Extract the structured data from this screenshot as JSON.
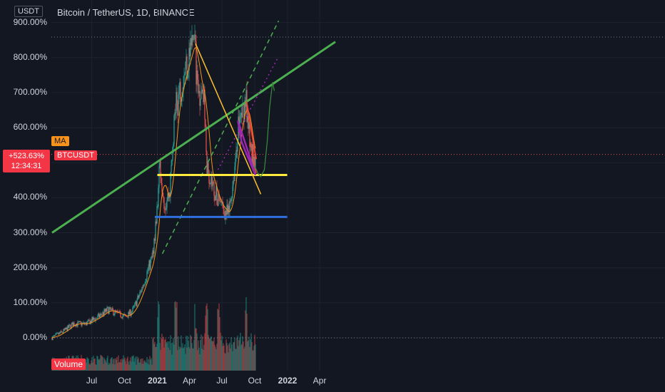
{
  "header": {
    "unit": "USDT",
    "title": "Bitcoin / TetherUS, 1D, BINANCE"
  },
  "indicators": {
    "ma_label": "MA",
    "symbol": "BTCUSDT",
    "current_change": "+523.63%",
    "countdown": "12:34:31",
    "volume_label": "Volume"
  },
  "colors": {
    "background": "#131722",
    "up": "#26a69a",
    "down": "#ef5350",
    "ma_line": "#f7931a",
    "trend_green": "#4caf50",
    "support_yellow": "#ffeb3b",
    "support_blue": "#2962ff",
    "wedge_yellow": "#fbc02d",
    "wedge_red": "#f44336",
    "purple": "#9c27b0"
  },
  "chart_data": {
    "type": "candlestick",
    "scale": "percent",
    "y_ticks": [
      "900.00%",
      "800.00%",
      "700.00%",
      "600.00%",
      "500.00%",
      "400.00%",
      "300.00%",
      "200.00%",
      "100.00%",
      "0.00%"
    ],
    "x_ticks": [
      "Jul",
      "Oct",
      "2021",
      "Apr",
      "Jul",
      "Oct",
      "2022",
      "Apr"
    ],
    "x_ticks_bold": [
      "2021",
      "2022"
    ],
    "ylim": [
      -100,
      950
    ],
    "price_path": [
      [
        "2020-03-12",
        0
      ],
      [
        "2020-04-15",
        20
      ],
      [
        "2020-05-10",
        40
      ],
      [
        "2020-06-15",
        40
      ],
      [
        "2020-07-20",
        60
      ],
      [
        "2020-08-15",
        80
      ],
      [
        "2020-09-10",
        70
      ],
      [
        "2020-10-05",
        60
      ],
      [
        "2020-10-25",
        80
      ],
      [
        "2020-11-15",
        130
      ],
      [
        "2020-12-01",
        180
      ],
      [
        "2020-12-18",
        230
      ],
      [
        "2021-01-02",
        380
      ],
      [
        "2021-01-08",
        500
      ],
      [
        "2021-01-22",
        380
      ],
      [
        "2021-02-05",
        420
      ],
      [
        "2021-02-20",
        650
      ],
      [
        "2021-03-15",
        750
      ],
      [
        "2021-04-14",
        860
      ],
      [
        "2021-04-25",
        700
      ],
      [
        "2021-05-10",
        720
      ],
      [
        "2021-05-19",
        500
      ],
      [
        "2021-06-01",
        450
      ],
      [
        "2021-06-22",
        380
      ],
      [
        "2021-07-20",
        350
      ],
      [
        "2021-08-05",
        480
      ],
      [
        "2021-08-15",
        600
      ],
      [
        "2021-09-06",
        680
      ],
      [
        "2021-09-21",
        520
      ],
      [
        "2021-10-03",
        523.63
      ]
    ],
    "volume_spike_dates": [
      "2021-01-04",
      "2021-02-22",
      "2021-04-18",
      "2021-05-19",
      "2021-06-22",
      "2021-09-07"
    ],
    "annotations": {
      "horizontal_support": [
        {
          "color": "yellow",
          "level": 465,
          "from": "2021-01-01",
          "to": "2021-12-31"
        },
        {
          "color": "blue",
          "level": 345,
          "from": "2020-12-25",
          "to": "2021-12-31"
        }
      ],
      "green_trend_line": {
        "from": [
          "2020-03-12",
          300
        ],
        "to": [
          "2022-05-15",
          845
        ]
      },
      "projection": "up toward trendline after retest"
    }
  }
}
